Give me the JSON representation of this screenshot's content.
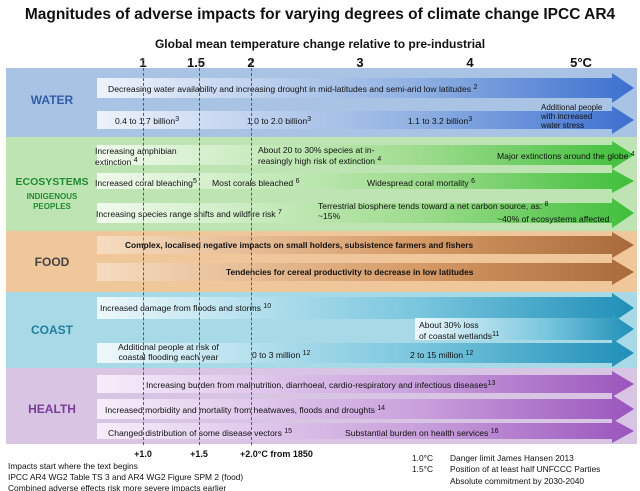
{
  "title": "Magnitudes of adverse impacts for varying degrees of climate change  IPCC AR4",
  "subtitle": "Global mean temperature change relative to pre-industrial",
  "axis_ticks": [
    "1",
    "1.5",
    "2",
    "3",
    "4",
    "5°C"
  ],
  "colors": {
    "water_bg": "#a9c3e4",
    "water_label": "#2f5ea6",
    "eco_bg": "#bfe4b3",
    "eco_label": "#1d8c2e",
    "food_bg": "#f0c79b",
    "food_label": "#444444",
    "coast_bg": "#a8d9e6",
    "coast_label": "#1f7f9e",
    "health_bg": "#d8c5e4",
    "health_label": "#7a3c96",
    "red_line": "#e2231a"
  },
  "sectors": {
    "water": {
      "label": "WATER"
    },
    "ecosystems": {
      "label": "ECOSYSTEMS",
      "sublabel": "INDIGENOUS PEOPLES"
    },
    "food": {
      "label": "FOOD"
    },
    "coast": {
      "label": "COAST"
    },
    "health": {
      "label": "HEALTH"
    }
  },
  "impacts": {
    "water_1": {
      "text": "Decreasing water availability and increasing drought in mid-latitudes and semi-arid low latitudes",
      "note": "2"
    },
    "water_2a": {
      "text": "0.4 to 1.7 billion",
      "note": "3"
    },
    "water_2b": {
      "text": "1.0 to 2.0 billion",
      "note": "3"
    },
    "water_2c": {
      "text": "1.1 to 3.2 billion",
      "note": "3"
    },
    "water_2d": {
      "line1": "Additional people",
      "line2": "with increased",
      "line3": "water stress"
    },
    "eco_1a": {
      "line1": "Increasing amphibian",
      "line2": "extinction",
      "note": "4"
    },
    "eco_1b": {
      "line1": "About 20 to 30% species at in-",
      "line2": "reasingly high risk of extinction",
      "note": "4"
    },
    "eco_1c": {
      "text": "Major extinctions around the globe",
      "note": "4"
    },
    "eco_2a": {
      "text": "Increased coral bleaching",
      "note": "5"
    },
    "eco_2b": {
      "text": "Most corals bleached",
      "note": "6"
    },
    "eco_2c": {
      "text": "Widespread coral mortality",
      "note": "6"
    },
    "eco_3a": {
      "text": "Increasing species range shifts and wildfire risk",
      "note": "7"
    },
    "eco_3b": {
      "line1": "Terrestrial biosphere tends toward a net carbon source, as:",
      "note": "8"
    },
    "eco_3c": {
      "text": "~15%"
    },
    "eco_3d": {
      "text": "~40% of ecosystems affected"
    },
    "food_1": {
      "text": "Complex, localised negative impacts on small holders, subsistence farmers and fishers"
    },
    "food_2": {
      "text": "Tendencies for cereal productivity to decrease in low latitudes"
    },
    "coast_1": {
      "text": "Increased damage from floods and storms",
      "note": "10"
    },
    "coast_2": {
      "line1": "About 30% loss",
      "line2": "of coastal wetlands",
      "note": "11"
    },
    "coast_3a": {
      "line1": "Additional people at risk of",
      "line2": "coastal flooding each year"
    },
    "coast_3b": {
      "text": "0 to 3 million",
      "note": "12"
    },
    "coast_3c": {
      "text": "2 to 15 million",
      "note": "12"
    },
    "health_1": {
      "text": "Increasing burden from malnutrition, diarrhoeal, cardio-respiratory and infectious diseases",
      "note": "13"
    },
    "health_2": {
      "text": "Increased morbidity and mortality from heatwaves, floods and droughts",
      "note": "14"
    },
    "health_3a": {
      "text": "Changed distribution of some disease vectors",
      "note": "15"
    },
    "health_3b": {
      "text": "Substantial burden on health services",
      "note": "16"
    }
  },
  "bottom_labels": {
    "a": "+1.0",
    "b": "+1.5",
    "c": "+2.0°C from 1850"
  },
  "footnotes": {
    "left1": "Impacts start where the text begins",
    "left2": "IPCC AR4  WG2 Table TS 3 and AR4 WG2 Figure SPM 2 (food)",
    "left3": "Combined adverse effects risk more severe impacts earlier",
    "right1a": "1.0°C",
    "right1b": "Danger limit James Hansen 2013",
    "right2a": "1.5°C",
    "right2b": "Position of at least half UNFCCC Parties",
    "right3": "Absolute commitment by  2030-2040"
  }
}
